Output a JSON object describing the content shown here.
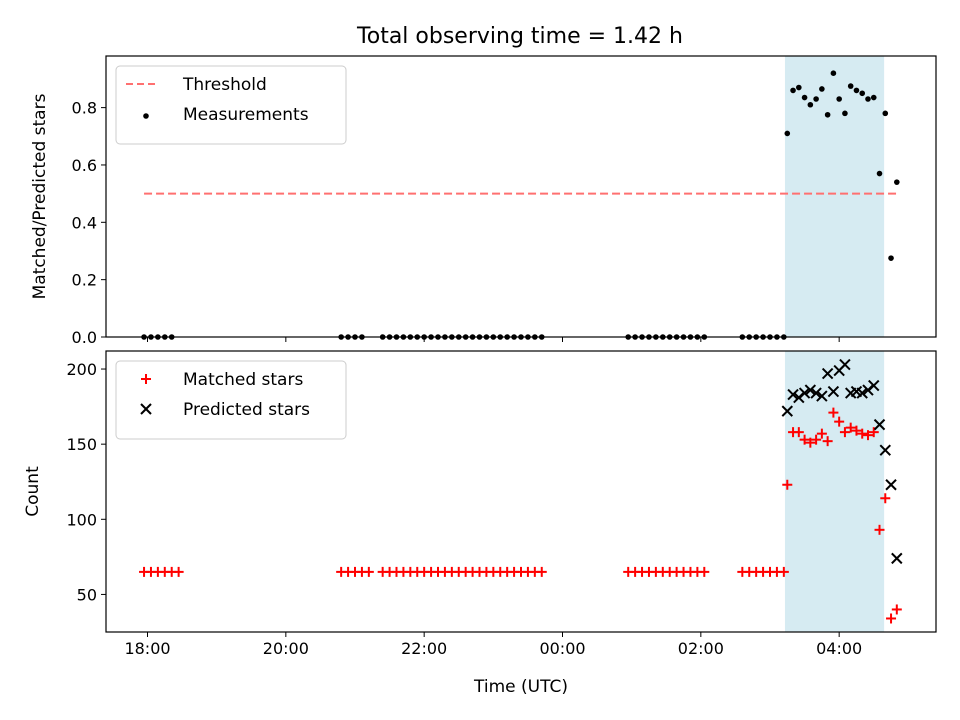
{
  "figure": {
    "title": "Total observing time = 1.42 h"
  },
  "chart_data": [
    {
      "type": "scatter",
      "panel": "top",
      "ylabel": "Matched/Predicted stars",
      "xlabel": "",
      "x_ticks": [
        "18:00",
        "20:00",
        "22:00",
        "00:00",
        "02:00",
        "04:00"
      ],
      "y_ticks": [
        "0.0",
        "0.2",
        "0.4",
        "0.6",
        "0.8"
      ],
      "ylim": [
        0,
        0.98
      ],
      "grid": false,
      "legend_placement": "top-left",
      "observing_window": {
        "start": "03:13",
        "end": "04:39",
        "color": "#add8e6"
      },
      "threshold": {
        "name": "Threshold",
        "value": 0.5,
        "x_start": "17:57",
        "x_end": "04:51",
        "color": "#ff7070"
      },
      "series": [
        {
          "name": "Measurements",
          "color": "#000000",
          "marker": "dot",
          "points": [
            [
              "17:57",
              0
            ],
            [
              "18:03",
              0
            ],
            [
              "18:09",
              0
            ],
            [
              "18:15",
              0
            ],
            [
              "18:21",
              0
            ],
            [
              "20:48",
              0
            ],
            [
              "20:54",
              0
            ],
            [
              "21:00",
              0
            ],
            [
              "21:06",
              0
            ],
            [
              "21:24",
              0
            ],
            [
              "21:30",
              0
            ],
            [
              "21:36",
              0
            ],
            [
              "21:42",
              0
            ],
            [
              "21:48",
              0
            ],
            [
              "21:54",
              0
            ],
            [
              "22:00",
              0
            ],
            [
              "22:06",
              0
            ],
            [
              "22:12",
              0
            ],
            [
              "22:18",
              0
            ],
            [
              "22:24",
              0
            ],
            [
              "22:30",
              0
            ],
            [
              "22:36",
              0
            ],
            [
              "22:42",
              0
            ],
            [
              "22:48",
              0
            ],
            [
              "22:54",
              0
            ],
            [
              "23:00",
              0
            ],
            [
              "23:06",
              0
            ],
            [
              "23:12",
              0
            ],
            [
              "23:18",
              0
            ],
            [
              "23:24",
              0
            ],
            [
              "23:30",
              0
            ],
            [
              "23:36",
              0
            ],
            [
              "23:42",
              0
            ],
            [
              "00:57",
              0
            ],
            [
              "01:03",
              0
            ],
            [
              "01:09",
              0
            ],
            [
              "01:15",
              0
            ],
            [
              "01:21",
              0
            ],
            [
              "01:27",
              0
            ],
            [
              "01:33",
              0
            ],
            [
              "01:39",
              0
            ],
            [
              "01:45",
              0
            ],
            [
              "01:51",
              0
            ],
            [
              "01:57",
              0
            ],
            [
              "02:03",
              0
            ],
            [
              "02:36",
              0
            ],
            [
              "02:42",
              0
            ],
            [
              "02:48",
              0
            ],
            [
              "02:54",
              0
            ],
            [
              "03:00",
              0
            ],
            [
              "03:06",
              0
            ],
            [
              "03:12",
              0
            ],
            [
              "03:15",
              0.71
            ],
            [
              "03:20",
              0.86
            ],
            [
              "03:25",
              0.87
            ],
            [
              "03:30",
              0.835
            ],
            [
              "03:35",
              0.81
            ],
            [
              "03:40",
              0.83
            ],
            [
              "03:45",
              0.865
            ],
            [
              "03:50",
              0.775
            ],
            [
              "03:55",
              0.92
            ],
            [
              "04:00",
              0.83
            ],
            [
              "04:05",
              0.78
            ],
            [
              "04:10",
              0.875
            ],
            [
              "04:15",
              0.86
            ],
            [
              "04:20",
              0.85
            ],
            [
              "04:25",
              0.83
            ],
            [
              "04:30",
              0.835
            ],
            [
              "04:35",
              0.57
            ],
            [
              "04:40",
              0.78
            ],
            [
              "04:45",
              0.275
            ],
            [
              "04:50",
              0.54
            ]
          ]
        }
      ]
    },
    {
      "type": "scatter",
      "panel": "bottom",
      "xlabel": "Time (UTC)",
      "ylabel": "Count",
      "x_ticks": [
        "18:00",
        "20:00",
        "22:00",
        "00:00",
        "02:00",
        "04:00"
      ],
      "y_ticks": [
        "50",
        "100",
        "150",
        "200"
      ],
      "ylim": [
        25,
        212
      ],
      "grid": false,
      "legend_placement": "top-left",
      "observing_window": {
        "start": "03:13",
        "end": "04:39",
        "color": "#add8e6"
      },
      "series": [
        {
          "name": "Matched stars",
          "color": "#ff0000",
          "marker": "plus",
          "points": [
            [
              "17:57",
              65
            ],
            [
              "18:03",
              65
            ],
            [
              "18:09",
              65
            ],
            [
              "18:15",
              65
            ],
            [
              "18:21",
              65
            ],
            [
              "18:27",
              65
            ],
            [
              "20:48",
              65
            ],
            [
              "20:54",
              65
            ],
            [
              "21:00",
              65
            ],
            [
              "21:06",
              65
            ],
            [
              "21:12",
              65
            ],
            [
              "21:24",
              65
            ],
            [
              "21:30",
              65
            ],
            [
              "21:36",
              65
            ],
            [
              "21:42",
              65
            ],
            [
              "21:48",
              65
            ],
            [
              "21:54",
              65
            ],
            [
              "22:00",
              65
            ],
            [
              "22:06",
              65
            ],
            [
              "22:12",
              65
            ],
            [
              "22:18",
              65
            ],
            [
              "22:24",
              65
            ],
            [
              "22:30",
              65
            ],
            [
              "22:36",
              65
            ],
            [
              "22:42",
              65
            ],
            [
              "22:48",
              65
            ],
            [
              "22:54",
              65
            ],
            [
              "23:00",
              65
            ],
            [
              "23:06",
              65
            ],
            [
              "23:12",
              65
            ],
            [
              "23:18",
              65
            ],
            [
              "23:24",
              65
            ],
            [
              "23:30",
              65
            ],
            [
              "23:36",
              65
            ],
            [
              "23:42",
              65
            ],
            [
              "00:57",
              65
            ],
            [
              "01:03",
              65
            ],
            [
              "01:09",
              65
            ],
            [
              "01:15",
              65
            ],
            [
              "01:21",
              65
            ],
            [
              "01:27",
              65
            ],
            [
              "01:33",
              65
            ],
            [
              "01:39",
              65
            ],
            [
              "01:45",
              65
            ],
            [
              "01:51",
              65
            ],
            [
              "01:57",
              65
            ],
            [
              "02:03",
              65
            ],
            [
              "02:36",
              65
            ],
            [
              "02:42",
              65
            ],
            [
              "02:48",
              65
            ],
            [
              "02:54",
              65
            ],
            [
              "03:00",
              65
            ],
            [
              "03:06",
              65
            ],
            [
              "03:12",
              65
            ],
            [
              "03:15",
              123
            ],
            [
              "03:20",
              158
            ],
            [
              "03:25",
              158
            ],
            [
              "03:30",
              153
            ],
            [
              "03:35",
              151
            ],
            [
              "03:40",
              153
            ],
            [
              "03:45",
              157
            ],
            [
              "03:50",
              152
            ],
            [
              "03:55",
              171
            ],
            [
              "04:00",
              165
            ],
            [
              "04:05",
              158
            ],
            [
              "04:10",
              161
            ],
            [
              "04:15",
              159
            ],
            [
              "04:20",
              157
            ],
            [
              "04:25",
              156
            ],
            [
              "04:30",
              158
            ],
            [
              "04:35",
              93
            ],
            [
              "04:40",
              114
            ],
            [
              "04:45",
              34
            ],
            [
              "04:50",
              40
            ]
          ]
        },
        {
          "name": "Predicted stars",
          "color": "#000000",
          "marker": "x",
          "points": [
            [
              "03:15",
              172
            ],
            [
              "03:20",
              183
            ],
            [
              "03:25",
              181
            ],
            [
              "03:30",
              184
            ],
            [
              "03:35",
              186
            ],
            [
              "03:40",
              184
            ],
            [
              "03:45",
              182
            ],
            [
              "03:50",
              197
            ],
            [
              "03:55",
              185
            ],
            [
              "04:00",
              199
            ],
            [
              "04:05",
              203
            ],
            [
              "04:10",
              184
            ],
            [
              "04:15",
              185
            ],
            [
              "04:20",
              184
            ],
            [
              "04:25",
              186
            ],
            [
              "04:30",
              189
            ],
            [
              "04:35",
              163
            ],
            [
              "04:40",
              146
            ],
            [
              "04:45",
              123
            ],
            [
              "04:50",
              74
            ]
          ]
        }
      ]
    }
  ]
}
